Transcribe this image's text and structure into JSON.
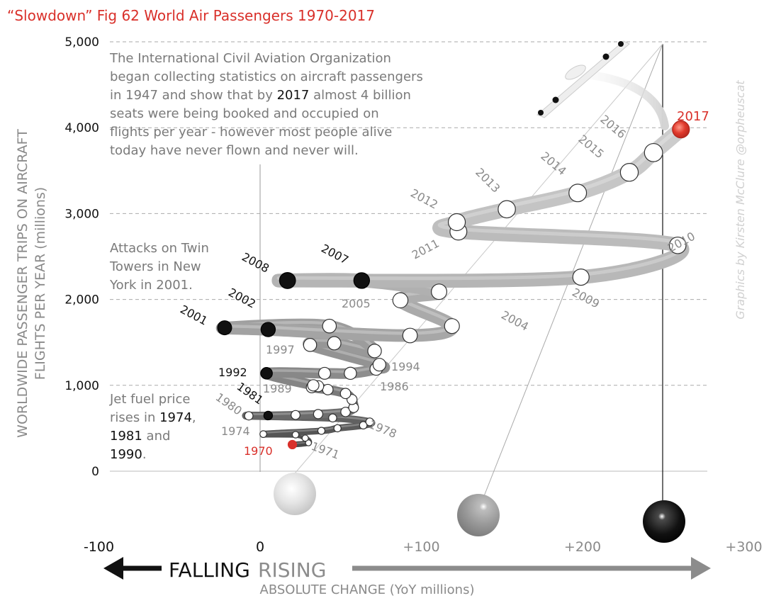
{
  "chart_data": {
    "type": "line",
    "title": "“Slowdown” Fig 62 World Air Passengers 1970-2017",
    "xlabel": "ABSOLUTE CHANGE (YoY millions)",
    "ylabel_line1": "WORLDWIDE PASSENGER TRIPS ON AIRCRAFT",
    "ylabel_line2": "FLIGHTS PER YEAR (millions)",
    "xlim": [
      -100,
      300
    ],
    "ylim": [
      0,
      5000
    ],
    "xticks": [
      {
        "value": -100,
        "label": "-100"
      },
      {
        "value": 0,
        "label": "0"
      },
      {
        "value": 100,
        "label": "+100"
      },
      {
        "value": 200,
        "label": "+200"
      },
      {
        "value": 300,
        "label": "+300"
      }
    ],
    "yticks": [
      {
        "value": 0,
        "label": "0"
      },
      {
        "value": 1000,
        "label": "1,000"
      },
      {
        "value": 2000,
        "label": "2,000"
      },
      {
        "value": 3000,
        "label": "3,000"
      },
      {
        "value": 4000,
        "label": "4,000"
      },
      {
        "value": 5000,
        "label": "5,000"
      }
    ],
    "grid": true,
    "arrow_falling": "FALLING",
    "arrow_rising": "RISING",
    "credit": "Graphics by Kirsten McClure @orpheuscat",
    "points": [
      {
        "year": 1970,
        "x": 20,
        "y": 310
      },
      {
        "year": 1971,
        "x": 30,
        "y": 330
      },
      {
        "year": 1972,
        "x": 28,
        "y": 385
      },
      {
        "year": 1973,
        "x": 22,
        "y": 425
      },
      {
        "year": 1974,
        "x": 2,
        "y": 432
      },
      {
        "year": 1975,
        "x": 38,
        "y": 470
      },
      {
        "year": 1976,
        "x": 48,
        "y": 500
      },
      {
        "year": 1977,
        "x": 64,
        "y": 535
      },
      {
        "year": 1978,
        "x": 68,
        "y": 575
      },
      {
        "year": 1979,
        "x": 45,
        "y": 620
      },
      {
        "year": 1980,
        "x": -7,
        "y": 645
      },
      {
        "year": 1981,
        "x": 5,
        "y": 648
      },
      {
        "year": 1982,
        "x": 22,
        "y": 655
      },
      {
        "year": 1983,
        "x": 36,
        "y": 665
      },
      {
        "year": 1984,
        "x": 53,
        "y": 690
      },
      {
        "year": 1985,
        "x": 58,
        "y": 740
      },
      {
        "year": 1986,
        "x": 57,
        "y": 835
      },
      {
        "year": 1987,
        "x": 53,
        "y": 905
      },
      {
        "year": 1988,
        "x": 42,
        "y": 950
      },
      {
        "year": 1989,
        "x": 32,
        "y": 975
      },
      {
        "year": 1990,
        "x": 36,
        "y": 990
      },
      {
        "year": 1991,
        "x": 33,
        "y": 1000
      },
      {
        "year": 1992,
        "x": 4,
        "y": 1140
      },
      {
        "year": 1993,
        "x": 40,
        "y": 1140
      },
      {
        "year": 1994,
        "x": 56,
        "y": 1140
      },
      {
        "year": 1995,
        "x": 72,
        "y": 1190
      },
      {
        "year": 1996,
        "x": 74,
        "y": 1240
      },
      {
        "year": 1997,
        "x": 31,
        "y": 1470
      },
      {
        "year": 1998,
        "x": 46,
        "y": 1490
      },
      {
        "year": 1999,
        "x": 71,
        "y": 1400
      },
      {
        "year": 2000,
        "x": 43,
        "y": 1690
      },
      {
        "year": 2001,
        "x": -22,
        "y": 1670
      },
      {
        "year": 2002,
        "x": 5,
        "y": 1650
      },
      {
        "year": 2003,
        "x": 93,
        "y": 1580
      },
      {
        "year": 2004,
        "x": 119,
        "y": 1690
      },
      {
        "year": 2005,
        "x": 87,
        "y": 1990
      },
      {
        "year": 2006,
        "x": 111,
        "y": 2090
      },
      {
        "year": 2007,
        "x": 63,
        "y": 2220
      },
      {
        "year": 2008,
        "x": 17,
        "y": 2220
      },
      {
        "year": 2009,
        "x": 199,
        "y": 2260
      },
      {
        "year": 2010,
        "x": 259,
        "y": 2630
      },
      {
        "year": 2011,
        "x": 123,
        "y": 2790
      },
      {
        "year": 2012,
        "x": 122,
        "y": 2900
      },
      {
        "year": 2013,
        "x": 153,
        "y": 3050
      },
      {
        "year": 2014,
        "x": 197,
        "y": 3240
      },
      {
        "year": 2015,
        "x": 229,
        "y": 3480
      },
      {
        "year": 2016,
        "x": 244,
        "y": 3710
      },
      {
        "year": 2017,
        "x": 261,
        "y": 3980
      }
    ]
  },
  "year_labels": [
    {
      "year": "1970",
      "tone": "red"
    },
    {
      "year": "1971",
      "tone": "grey"
    },
    {
      "year": "1974",
      "tone": "grey"
    },
    {
      "year": "1978",
      "tone": "grey"
    },
    {
      "year": "1980",
      "tone": "grey"
    },
    {
      "year": "1981",
      "tone": "black"
    },
    {
      "year": "1986",
      "tone": "grey"
    },
    {
      "year": "1989",
      "tone": "grey"
    },
    {
      "year": "1992",
      "tone": "black"
    },
    {
      "year": "1994",
      "tone": "grey"
    },
    {
      "year": "1997",
      "tone": "grey"
    },
    {
      "year": "2001",
      "tone": "black"
    },
    {
      "year": "2002",
      "tone": "black"
    },
    {
      "year": "2004",
      "tone": "grey"
    },
    {
      "year": "2005",
      "tone": "grey"
    },
    {
      "year": "2007",
      "tone": "black"
    },
    {
      "year": "2008",
      "tone": "black"
    },
    {
      "year": "2009",
      "tone": "grey"
    },
    {
      "year": "2010",
      "tone": "grey"
    },
    {
      "year": "2011",
      "tone": "grey"
    },
    {
      "year": "2012",
      "tone": "grey"
    },
    {
      "year": "2013",
      "tone": "grey"
    },
    {
      "year": "2014",
      "tone": "grey"
    },
    {
      "year": "2015",
      "tone": "grey"
    },
    {
      "year": "2016",
      "tone": "grey"
    },
    {
      "year": "2017",
      "tone": "red"
    }
  ],
  "annotations": {
    "icao": {
      "lines": [
        "The International Civil Aviation Organization",
        "began collecting statistics on aircraft passengers",
        "in 1947 and show that by ",
        "seats were being booked and occupied on",
        "flights per year - however most people alive",
        "today have never flown and never will."
      ],
      "bold_year": "2017",
      "line3_tail": " almost 4 billion"
    },
    "twin_towers": [
      "Attacks on Twin",
      "Towers in New",
      "York in 2001."
    ],
    "jet_fuel": {
      "line1": "Jet fuel price",
      "line2_pre": "rises in ",
      "y1": "1974",
      "line2_post": ",",
      "y2": "1981",
      "line3_mid": " and",
      "y3": "1990",
      "line4_post": "."
    }
  },
  "colors": {
    "red": "#d9302a",
    "black": "#111111",
    "grey_text": "#8a8a8a",
    "annotation_text": "#7a7a7a",
    "tube_dark": "#4a4a4a",
    "tube_light": "#c8c8c8",
    "grid": "#bbbbbb",
    "arrow_grey": "#8c8c8c",
    "credit": "#d0d0d0"
  }
}
